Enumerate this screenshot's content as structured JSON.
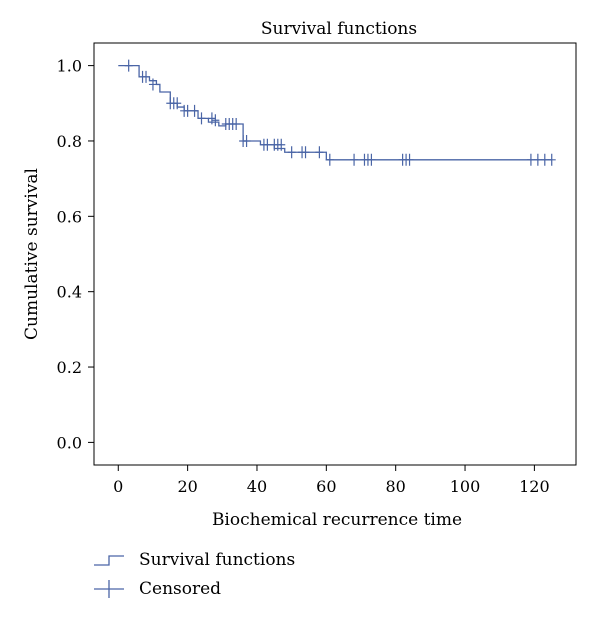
{
  "chart_data": {
    "type": "line",
    "title": "Survival functions",
    "xlabel": "Biochemical recurrence time",
    "ylabel": "Cumulative survival",
    "xlim": [
      -7,
      132
    ],
    "ylim": [
      -0.06,
      1.06
    ],
    "x_ticks": [
      0,
      20,
      40,
      60,
      80,
      100,
      120
    ],
    "y_ticks": [
      0.0,
      0.2,
      0.4,
      0.6,
      0.8,
      1.0
    ],
    "y_tick_labels": [
      "0.0",
      "0.2",
      "0.4",
      "0.6",
      "0.8",
      "1.0"
    ],
    "grid": false,
    "legend_position": "bottom-left",
    "colors": {
      "line": "#4a65a6",
      "axes": "#000000"
    },
    "series": [
      {
        "name": "Survival functions",
        "style": "step",
        "x": [
          0,
          6,
          9,
          11,
          12,
          15,
          17,
          19,
          23,
          26,
          29,
          31,
          36,
          41,
          45,
          48,
          60,
          125
        ],
        "y": [
          1.0,
          0.97,
          0.96,
          0.95,
          0.93,
          0.9,
          0.89,
          0.88,
          0.86,
          0.85,
          0.84,
          0.845,
          0.8,
          0.79,
          0.78,
          0.77,
          0.75,
          0.75
        ]
      },
      {
        "name": "Censored",
        "style": "marker-plus",
        "points": [
          [
            3,
            1.0
          ],
          [
            7,
            0.97
          ],
          [
            8,
            0.97
          ],
          [
            10,
            0.95
          ],
          [
            15,
            0.9
          ],
          [
            16,
            0.9
          ],
          [
            17,
            0.9
          ],
          [
            19,
            0.88
          ],
          [
            20,
            0.88
          ],
          [
            22,
            0.88
          ],
          [
            24,
            0.86
          ],
          [
            27,
            0.86
          ],
          [
            28,
            0.855
          ],
          [
            31,
            0.845
          ],
          [
            32,
            0.845
          ],
          [
            33,
            0.845
          ],
          [
            34,
            0.845
          ],
          [
            36,
            0.8
          ],
          [
            37,
            0.8
          ],
          [
            42,
            0.79
          ],
          [
            43,
            0.79
          ],
          [
            45,
            0.79
          ],
          [
            46,
            0.79
          ],
          [
            47,
            0.79
          ],
          [
            50,
            0.77
          ],
          [
            53,
            0.77
          ],
          [
            54,
            0.77
          ],
          [
            58,
            0.77
          ],
          [
            61,
            0.75
          ],
          [
            68,
            0.75
          ],
          [
            71,
            0.75
          ],
          [
            72,
            0.75
          ],
          [
            73,
            0.75
          ],
          [
            82,
            0.75
          ],
          [
            83,
            0.75
          ],
          [
            84,
            0.75
          ],
          [
            119,
            0.75
          ],
          [
            121,
            0.75
          ],
          [
            123,
            0.75
          ],
          [
            125,
            0.75
          ]
        ]
      }
    ]
  },
  "legend": {
    "items": [
      {
        "label": "Survival functions",
        "symbol": "step"
      },
      {
        "label": "Censored",
        "symbol": "plus"
      }
    ]
  }
}
